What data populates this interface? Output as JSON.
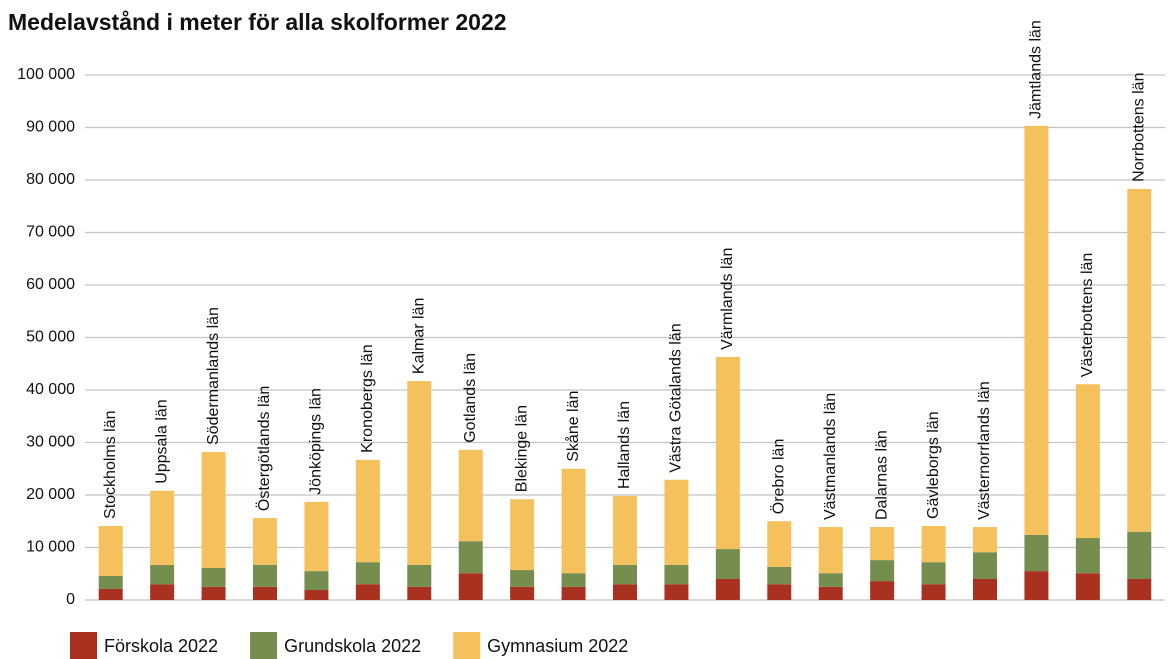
{
  "chart_data": {
    "type": "stacked_bar",
    "title": "Medelavstånd i meter för alla skolformer 2022",
    "categories": [
      "Stockholms län",
      "Uppsala län",
      "Södermanlands län",
      "Östergötlands län",
      "Jönköpings län",
      "Kronobergs län",
      "Kalmar län",
      "Gotlands län",
      "Blekinge län",
      "Skåne län",
      "Hallands län",
      "Västra Götalands län",
      "Värmlands län",
      "Örebro län",
      "Västmanlands län",
      "Dalarnas län",
      "Gävleborgs län",
      "Västernorrlands län",
      "Jämtlands län",
      "Västerbottens län",
      "Norrbottens län"
    ],
    "series": [
      {
        "name": "Förskola 2022",
        "color": "#a8321f",
        "values": [
          2100,
          3000,
          2500,
          2500,
          1900,
          3000,
          2500,
          5100,
          2500,
          2500,
          3000,
          3000,
          4000,
          3000,
          2500,
          3600,
          3000,
          4000,
          5500,
          5100,
          4000
        ]
      },
      {
        "name": "Grundskola 2022",
        "color": "#758d4e",
        "values": [
          2500,
          3700,
          3600,
          4200,
          3600,
          4200,
          4200,
          6100,
          3200,
          2600,
          3700,
          3700,
          5700,
          3300,
          2600,
          4000,
          4200,
          5100,
          6900,
          6700,
          9000
        ]
      },
      {
        "name": "Gymnasium 2022",
        "color": "#f4c15d",
        "values": [
          9500,
          14100,
          22100,
          8900,
          13200,
          19500,
          35000,
          17400,
          13500,
          19900,
          13100,
          16200,
          36600,
          8700,
          8800,
          6300,
          6900,
          4800,
          77900,
          29300,
          65300
        ]
      }
    ],
    "ylim": [
      0,
      100000
    ],
    "yticks": [
      0,
      {
        "value": 10000,
        "label": "10 000"
      },
      {
        "value": 20000,
        "label": "20 000"
      },
      {
        "value": 30000,
        "label": "30 000"
      },
      {
        "value": 40000,
        "label": "40 000"
      },
      {
        "value": 50000,
        "label": "50 000"
      },
      {
        "value": 60000,
        "label": "60 000"
      },
      {
        "value": 70000,
        "label": "70 000"
      },
      {
        "value": 80000,
        "label": "80 000"
      },
      {
        "value": 90000,
        "label": "90 000"
      },
      {
        "value": 100000,
        "label": "100 000"
      }
    ],
    "grid": true,
    "legend": "bottom-left"
  }
}
